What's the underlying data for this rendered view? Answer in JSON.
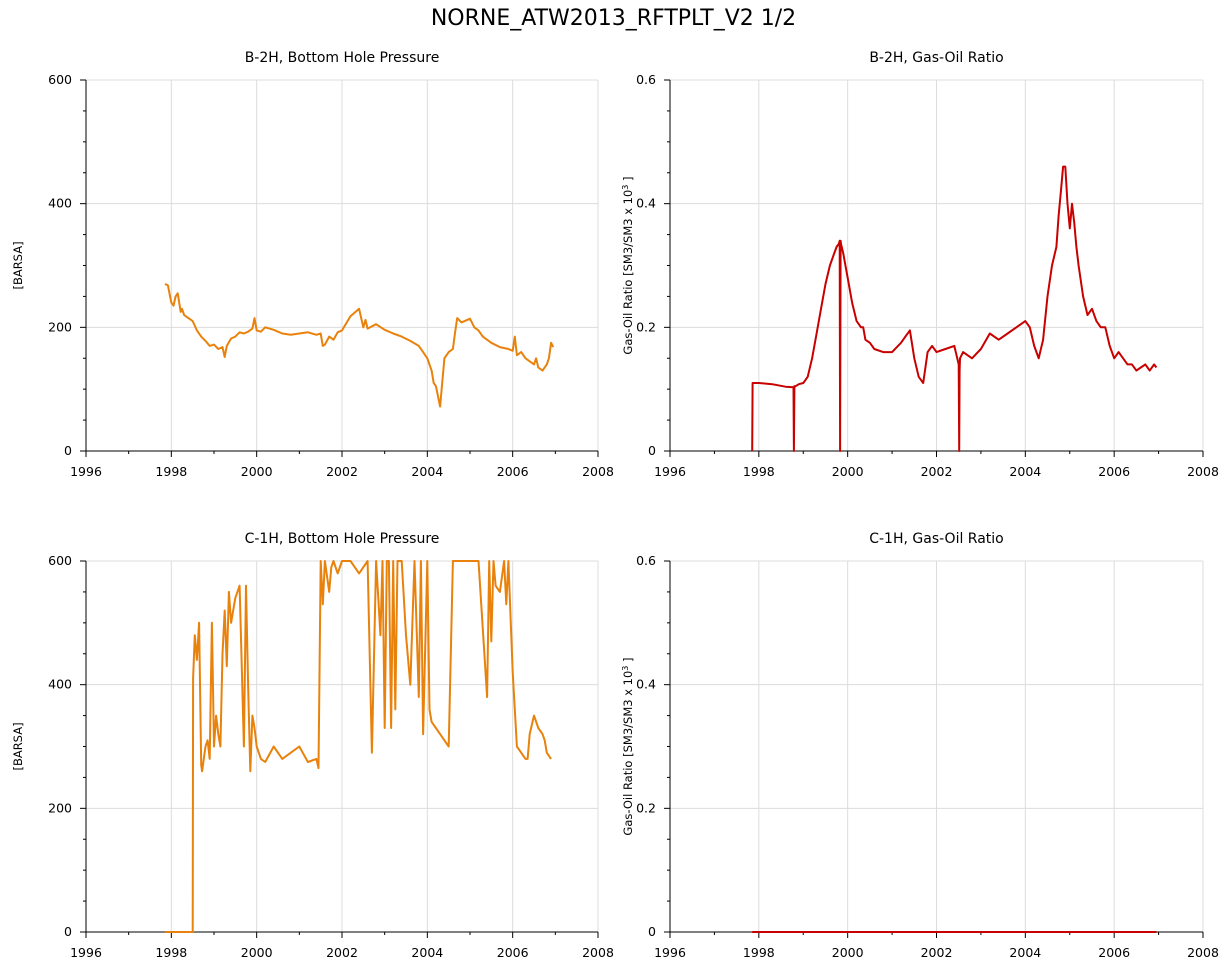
{
  "page": {
    "title": "NORNE_ATW2013_RFTPLT_V2 1/2"
  },
  "colors": {
    "pressure": "#e8820c",
    "gor": "#c80000",
    "grid": "#dcdcdc",
    "axis": "#000000"
  },
  "chart_data": [
    {
      "type": "line",
      "title": "B-2H, Bottom Hole Pressure",
      "xlabel": "",
      "ylabel": "[BARSA]",
      "ylabel_superscript": "",
      "ylabel_suffix": "",
      "xlim": [
        1996,
        2008
      ],
      "ylim": [
        0,
        600
      ],
      "xticks": [
        1996,
        1998,
        2000,
        2002,
        2004,
        2006,
        2008
      ],
      "yticks": [
        0,
        200,
        400,
        600
      ],
      "ytick_labels": [
        "0",
        "200",
        "400",
        "600"
      ],
      "grid": true,
      "series": [
        {
          "color": "#e8820c",
          "x": [
            1997.85,
            1997.92,
            1998.0,
            1998.05,
            1998.1,
            1998.15,
            1998.22,
            1998.25,
            1998.3,
            1998.4,
            1998.5,
            1998.6,
            1998.7,
            1998.8,
            1998.9,
            1999.0,
            1999.1,
            1999.2,
            1999.25,
            1999.3,
            1999.4,
            1999.5,
            1999.6,
            1999.7,
            1999.8,
            1999.9,
            1999.95,
            2000.0,
            2000.1,
            2000.2,
            2000.4,
            2000.6,
            2000.8,
            2001.0,
            2001.2,
            2001.4,
            2001.5,
            2001.55,
            2001.6,
            2001.7,
            2001.8,
            2001.9,
            2002.0,
            2002.2,
            2002.4,
            2002.5,
            2002.55,
            2002.6,
            2002.8,
            2003.0,
            2003.2,
            2003.4,
            2003.6,
            2003.8,
            2003.9,
            2004.0,
            2004.1,
            2004.15,
            2004.2,
            2004.3,
            2004.4,
            2004.5,
            2004.6,
            2004.65,
            2004.7,
            2004.8,
            2005.0,
            2005.1,
            2005.2,
            2005.3,
            2005.5,
            2005.7,
            2005.9,
            2006.0,
            2006.05,
            2006.1,
            2006.2,
            2006.3,
            2006.4,
            2006.5,
            2006.55,
            2006.6,
            2006.7,
            2006.8,
            2006.85,
            2006.9,
            2006.95
          ],
          "y": [
            270,
            268,
            240,
            235,
            250,
            255,
            225,
            230,
            220,
            215,
            210,
            195,
            185,
            178,
            170,
            172,
            165,
            168,
            152,
            170,
            182,
            185,
            192,
            190,
            193,
            198,
            215,
            195,
            193,
            200,
            196,
            190,
            188,
            190,
            192,
            188,
            190,
            170,
            172,
            185,
            180,
            192,
            195,
            218,
            230,
            200,
            212,
            198,
            205,
            196,
            190,
            185,
            178,
            170,
            160,
            150,
            130,
            110,
            105,
            72,
            150,
            160,
            165,
            192,
            215,
            208,
            214,
            200,
            195,
            185,
            175,
            168,
            165,
            162,
            185,
            155,
            160,
            150,
            145,
            140,
            150,
            135,
            130,
            140,
            150,
            175,
            168
          ]
        }
      ]
    },
    {
      "type": "line",
      "title": "B-2H, Gas-Oil Ratio",
      "xlabel": "",
      "ylabel": "Gas-Oil Ratio [SM3/SM3 x 10",
      "ylabel_superscript": "3",
      "ylabel_suffix": " ]",
      "xlim": [
        1996,
        2008
      ],
      "ylim": [
        0,
        0.6
      ],
      "xticks": [
        1996,
        1998,
        2000,
        2002,
        2004,
        2006,
        2008
      ],
      "yticks": [
        0,
        0.2,
        0.4,
        0.6
      ],
      "ytick_labels": [
        "0",
        "0.2",
        "0.4",
        "0.6"
      ],
      "grid": true,
      "series": [
        {
          "color": "#c80000",
          "x": [
            1997.85,
            1997.86,
            1998.0,
            1998.3,
            1998.6,
            1998.78,
            1998.79,
            1998.8,
            1998.81,
            1998.9,
            1999.0,
            1999.1,
            1999.2,
            1999.3,
            1999.4,
            1999.5,
            1999.6,
            1999.7,
            1999.75,
            1999.8,
            1999.82,
            1999.83,
            1999.84,
            1999.85,
            1999.9,
            2000.0,
            2000.1,
            2000.2,
            2000.3,
            2000.35,
            2000.4,
            2000.5,
            2000.6,
            2000.8,
            2001.0,
            2001.2,
            2001.3,
            2001.4,
            2001.5,
            2001.6,
            2001.7,
            2001.8,
            2001.9,
            2002.0,
            2002.2,
            2002.4,
            2002.5,
            2002.51,
            2002.52,
            2002.53,
            2002.6,
            2002.8,
            2003.0,
            2003.2,
            2003.4,
            2003.6,
            2003.8,
            2004.0,
            2004.1,
            2004.2,
            2004.3,
            2004.4,
            2004.5,
            2004.6,
            2004.7,
            2004.75,
            2004.8,
            2004.85,
            2004.9,
            2004.95,
            2005.0,
            2005.05,
            2005.1,
            2005.15,
            2005.2,
            2005.3,
            2005.4,
            2005.5,
            2005.6,
            2005.7,
            2005.8,
            2005.9,
            2006.0,
            2006.1,
            2006.2,
            2006.3,
            2006.4,
            2006.5,
            2006.6,
            2006.7,
            2006.8,
            2006.9,
            2006.95
          ],
          "y": [
            0,
            0.11,
            0.11,
            0.108,
            0.104,
            0.103,
            0,
            0.105,
            0.104,
            0.108,
            0.11,
            0.12,
            0.15,
            0.19,
            0.23,
            0.27,
            0.3,
            0.32,
            0.33,
            0.335,
            0.34,
            0,
            0.34,
            0.335,
            0.32,
            0.28,
            0.24,
            0.21,
            0.2,
            0.2,
            0.18,
            0.175,
            0.165,
            0.16,
            0.16,
            0.175,
            0.185,
            0.195,
            0.15,
            0.12,
            0.11,
            0.16,
            0.17,
            0.16,
            0.165,
            0.17,
            0.14,
            0,
            0.13,
            0.15,
            0.16,
            0.15,
            0.165,
            0.19,
            0.18,
            0.19,
            0.2,
            0.21,
            0.2,
            0.17,
            0.15,
            0.18,
            0.25,
            0.3,
            0.33,
            0.38,
            0.42,
            0.46,
            0.46,
            0.4,
            0.36,
            0.4,
            0.37,
            0.33,
            0.3,
            0.25,
            0.22,
            0.23,
            0.21,
            0.2,
            0.2,
            0.17,
            0.15,
            0.16,
            0.15,
            0.14,
            0.14,
            0.13,
            0.135,
            0.14,
            0.13,
            0.14,
            0.135
          ]
        }
      ]
    },
    {
      "type": "line",
      "title": "C-1H, Bottom Hole Pressure",
      "xlabel": "",
      "ylabel": "[BARSA]",
      "ylabel_superscript": "",
      "ylabel_suffix": "",
      "xlim": [
        1996,
        2008
      ],
      "ylim": [
        0,
        600
      ],
      "xticks": [
        1996,
        1998,
        2000,
        2002,
        2004,
        2006,
        2008
      ],
      "yticks": [
        0,
        200,
        400,
        600
      ],
      "ytick_labels": [
        "0",
        "200",
        "400",
        "600"
      ],
      "grid": true,
      "series": [
        {
          "color": "#e8820c",
          "x": [
            1997.85,
            1998.5,
            1998.51,
            1998.55,
            1998.6,
            1998.65,
            1998.7,
            1998.72,
            1998.8,
            1998.85,
            1998.9,
            1998.95,
            1999.0,
            1999.05,
            1999.1,
            1999.15,
            1999.2,
            1999.25,
            1999.3,
            1999.35,
            1999.4,
            1999.5,
            1999.6,
            1999.7,
            1999.75,
            1999.8,
            1999.85,
            1999.9,
            1999.95,
            2000.0,
            2000.05,
            2000.1,
            2000.2,
            2000.4,
            2000.6,
            2000.8,
            2001.0,
            2001.2,
            2001.4,
            2001.45,
            2001.5,
            2001.55,
            2001.6,
            2001.7,
            2001.75,
            2001.8,
            2001.9,
            2002.0,
            2002.2,
            2002.4,
            2002.6,
            2002.7,
            2002.8,
            2002.85,
            2002.9,
            2002.95,
            2003.0,
            2003.05,
            2003.1,
            2003.15,
            2003.2,
            2003.25,
            2003.3,
            2003.4,
            2003.5,
            2003.6,
            2003.7,
            2003.8,
            2003.85,
            2003.9,
            2004.0,
            2004.05,
            2004.1,
            2004.2,
            2004.3,
            2004.4,
            2004.5,
            2004.6,
            2004.65,
            2004.7,
            2004.8,
            2005.0,
            2005.2,
            2005.4,
            2005.45,
            2005.5,
            2005.55,
            2005.6,
            2005.7,
            2005.8,
            2005.85,
            2005.9,
            2006.0,
            2006.1,
            2006.2,
            2006.25,
            2006.3,
            2006.35,
            2006.4,
            2006.5,
            2006.6,
            2006.7,
            2006.75,
            2006.8,
            2006.85,
            2006.9
          ],
          "y": [
            0,
            0,
            410,
            480,
            440,
            500,
            270,
            260,
            300,
            310,
            280,
            500,
            300,
            350,
            320,
            300,
            450,
            520,
            430,
            550,
            500,
            540,
            560,
            300,
            560,
            400,
            260,
            350,
            330,
            300,
            290,
            280,
            275,
            300,
            280,
            290,
            300,
            275,
            280,
            265,
            600,
            530,
            600,
            550,
            590,
            600,
            580,
            600,
            600,
            580,
            600,
            290,
            600,
            540,
            480,
            600,
            330,
            600,
            600,
            330,
            600,
            360,
            600,
            600,
            480,
            400,
            600,
            380,
            600,
            320,
            600,
            360,
            340,
            330,
            320,
            310,
            300,
            600,
            600,
            600,
            600,
            600,
            600,
            380,
            600,
            470,
            600,
            560,
            550,
            600,
            530,
            600,
            420,
            300,
            290,
            285,
            280,
            280,
            320,
            350,
            330,
            320,
            310,
            290,
            285,
            280
          ]
        }
      ]
    },
    {
      "type": "line",
      "title": "C-1H, Gas-Oil Ratio",
      "xlabel": "",
      "ylabel": "Gas-Oil Ratio [SM3/SM3 x 10",
      "ylabel_superscript": "3",
      "ylabel_suffix": " ]",
      "xlim": [
        1996,
        2008
      ],
      "ylim": [
        0,
        0.6
      ],
      "xticks": [
        1996,
        1998,
        2000,
        2002,
        2004,
        2006,
        2008
      ],
      "yticks": [
        0,
        0.2,
        0.4,
        0.6
      ],
      "ytick_labels": [
        "0",
        "0.2",
        "0.4",
        "0.6"
      ],
      "grid": true,
      "series": [
        {
          "color": "#c80000",
          "x": [
            1997.85,
            2006.95
          ],
          "y": [
            0,
            0
          ]
        }
      ]
    }
  ]
}
